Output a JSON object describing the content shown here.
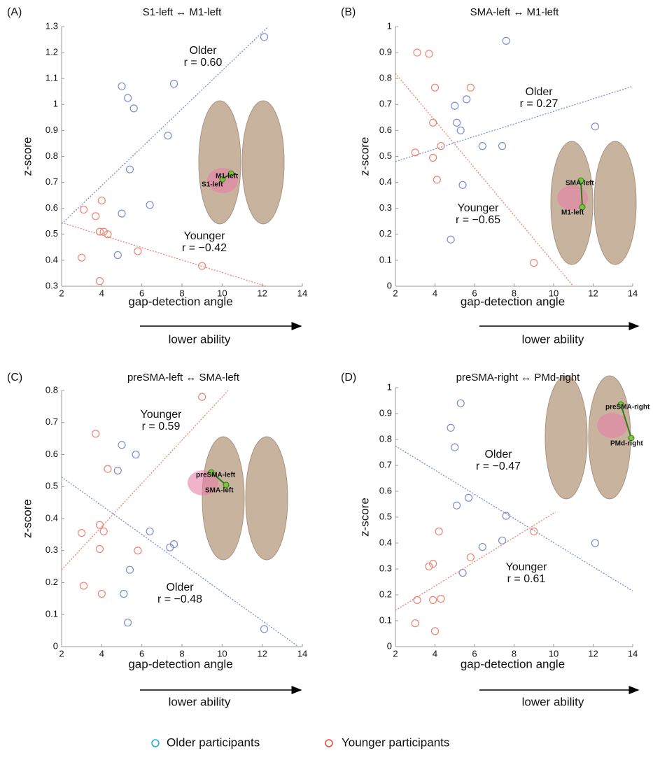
{
  "chart_data": [
    {
      "type": "scatter",
      "panel": "(A)",
      "title": "S1-left ↔ M1-left",
      "x_label": "gap-detection angle",
      "y_label": "z-score",
      "note": "lower ability",
      "xlim": [
        2,
        14
      ],
      "xticks": [
        2,
        4,
        6,
        8,
        10,
        12,
        14
      ],
      "ylim": [
        0.3,
        1.3
      ],
      "yticks": [
        0.3,
        0.4,
        0.5,
        0.6,
        0.7,
        0.8,
        0.9,
        1,
        1.1,
        1.2,
        1.3
      ],
      "brain_labels": [
        "M1-left",
        "S1-left"
      ],
      "series": [
        {
          "name": "Older",
          "r_label": "r = 0.60",
          "color": "#7b8ed2",
          "label_color": "#1b87c9",
          "x": [
            12.1,
            5.0,
            5.3,
            5.6,
            7.6,
            7.3,
            5.4,
            6.4,
            5.0,
            4.8
          ],
          "y": [
            1.26,
            1.07,
            1.025,
            0.985,
            1.08,
            0.88,
            0.75,
            0.613,
            0.58,
            0.42
          ],
          "fit": {
            "x": [
              2,
              12.3
            ],
            "y": [
              0.54,
              1.3
            ]
          }
        },
        {
          "name": "Younger",
          "r_label": "r = −0.42",
          "color": "#ef8270",
          "label_color": "#e52420",
          "x": [
            3.1,
            3.7,
            4.0,
            3.9,
            4.1,
            4.3,
            3.0,
            3.9,
            5.8,
            9.0
          ],
          "y": [
            0.595,
            0.57,
            0.63,
            0.51,
            0.51,
            0.5,
            0.41,
            0.32,
            0.435,
            0.378
          ],
          "fit": {
            "x": [
              2,
              12.2
            ],
            "y": [
              0.545,
              0.3
            ]
          }
        }
      ]
    },
    {
      "type": "scatter",
      "panel": "(B)",
      "title": "SMA-left ↔ M1-left",
      "x_label": "gap-detection angle",
      "y_label": "z-score",
      "note": "lower ability",
      "xlim": [
        2,
        14
      ],
      "xticks": [
        2,
        4,
        6,
        8,
        10,
        12,
        14
      ],
      "ylim": [
        0,
        1
      ],
      "yticks": [
        0,
        0.1,
        0.2,
        0.3,
        0.4,
        0.5,
        0.6,
        0.7,
        0.8,
        0.9,
        1
      ],
      "brain_labels": [
        "SMA-left",
        "M1-left"
      ],
      "series": [
        {
          "name": "Older",
          "r_label": "r = 0.27",
          "color": "#7b8ed2",
          "label_color": "#1b87c9",
          "x": [
            7.6,
            5.0,
            5.6,
            5.1,
            5.3,
            6.4,
            7.4,
            12.1,
            5.4,
            4.8
          ],
          "y": [
            0.945,
            0.695,
            0.72,
            0.63,
            0.6,
            0.54,
            0.54,
            0.615,
            0.39,
            0.18
          ],
          "fit": {
            "x": [
              2,
              14
            ],
            "y": [
              0.48,
              0.77
            ]
          }
        },
        {
          "name": "Younger",
          "r_label": "r = −0.65",
          "color": "#ef8270",
          "label_color": "#e52420",
          "x": [
            3.1,
            3.7,
            4.0,
            5.8,
            3.9,
            4.3,
            3.0,
            3.9,
            4.1,
            9.0
          ],
          "y": [
            0.9,
            0.895,
            0.765,
            0.765,
            0.63,
            0.54,
            0.515,
            0.495,
            0.41,
            0.09
          ],
          "fit": {
            "x": [
              2,
              11
            ],
            "y": [
              0.82,
              0
            ]
          }
        }
      ]
    },
    {
      "type": "scatter",
      "panel": "(C)",
      "title": "preSMA-left ↔ SMA-left",
      "x_label": "gap-detection angle",
      "y_label": "z-score",
      "note": "lower ability",
      "xlim": [
        2,
        14
      ],
      "xticks": [
        2,
        4,
        6,
        8,
        10,
        12,
        14
      ],
      "ylim": [
        0,
        0.8
      ],
      "yticks": [
        0,
        0.1,
        0.2,
        0.3,
        0.4,
        0.5,
        0.6,
        0.7,
        0.8
      ],
      "brain_labels": [
        "preSMA-left",
        "SMA-left"
      ],
      "series": [
        {
          "name": "Older",
          "r_label": "r = −0.48",
          "color": "#7b8ed2",
          "label_color": "#1b87c9",
          "x": [
            5.0,
            5.7,
            4.8,
            6.4,
            7.4,
            7.6,
            5.4,
            5.1,
            5.3,
            12.1
          ],
          "y": [
            0.63,
            0.6,
            0.55,
            0.36,
            0.31,
            0.32,
            0.24,
            0.165,
            0.075,
            0.055
          ],
          "fit": {
            "x": [
              2,
              13.8
            ],
            "y": [
              0.53,
              0
            ]
          }
        },
        {
          "name": "Younger",
          "r_label": "r = 0.59",
          "color": "#ef8270",
          "label_color": "#e52420",
          "x": [
            3.7,
            9.0,
            4.3,
            3.0,
            3.9,
            4.1,
            3.9,
            5.8,
            3.1,
            4.0
          ],
          "y": [
            0.665,
            0.78,
            0.555,
            0.355,
            0.38,
            0.36,
            0.305,
            0.3,
            0.19,
            0.165
          ],
          "fit": {
            "x": [
              2,
              10.3
            ],
            "y": [
              0.24,
              0.8
            ]
          }
        }
      ]
    },
    {
      "type": "scatter",
      "panel": "(D)",
      "title": "preSMA-right ↔ PMd-right",
      "x_label": "gap-detection angle",
      "y_label": "z-score",
      "note": "lower ability",
      "xlim": [
        2,
        14
      ],
      "xticks": [
        2,
        4,
        6,
        8,
        10,
        12,
        14
      ],
      "ylim": [
        0,
        1
      ],
      "yticks": [
        0,
        0.1,
        0.2,
        0.3,
        0.4,
        0.5,
        0.6,
        0.7,
        0.8,
        0.9,
        1
      ],
      "brain_labels": [
        "preSMA-right",
        "PMd-right"
      ],
      "series": [
        {
          "name": "Older",
          "r_label": "r = −0.47",
          "color": "#7b8ed2",
          "label_color": "#1b87c9",
          "x": [
            5.3,
            4.8,
            5.0,
            5.1,
            5.7,
            7.6,
            6.4,
            7.4,
            5.4,
            12.1
          ],
          "y": [
            0.94,
            0.845,
            0.77,
            0.545,
            0.575,
            0.505,
            0.385,
            0.41,
            0.285,
            0.4
          ],
          "fit": {
            "x": [
              2,
              14
            ],
            "y": [
              0.775,
              0.215
            ]
          }
        },
        {
          "name": "Younger",
          "r_label": "r = 0.61",
          "color": "#ef8270",
          "label_color": "#e52420",
          "x": [
            4.2,
            3.7,
            3.9,
            5.8,
            9.0,
            3.1,
            3.9,
            4.3,
            3.0,
            4.0
          ],
          "y": [
            0.445,
            0.31,
            0.32,
            0.345,
            0.445,
            0.18,
            0.18,
            0.185,
            0.09,
            0.06
          ],
          "fit": {
            "x": [
              2,
              10.1
            ],
            "y": [
              0.14,
              0.52
            ]
          }
        }
      ]
    }
  ],
  "legend": [
    {
      "label": "Older participants",
      "color": "#1aaee5"
    },
    {
      "label": "Younger participants",
      "color": "#e8453c"
    }
  ]
}
